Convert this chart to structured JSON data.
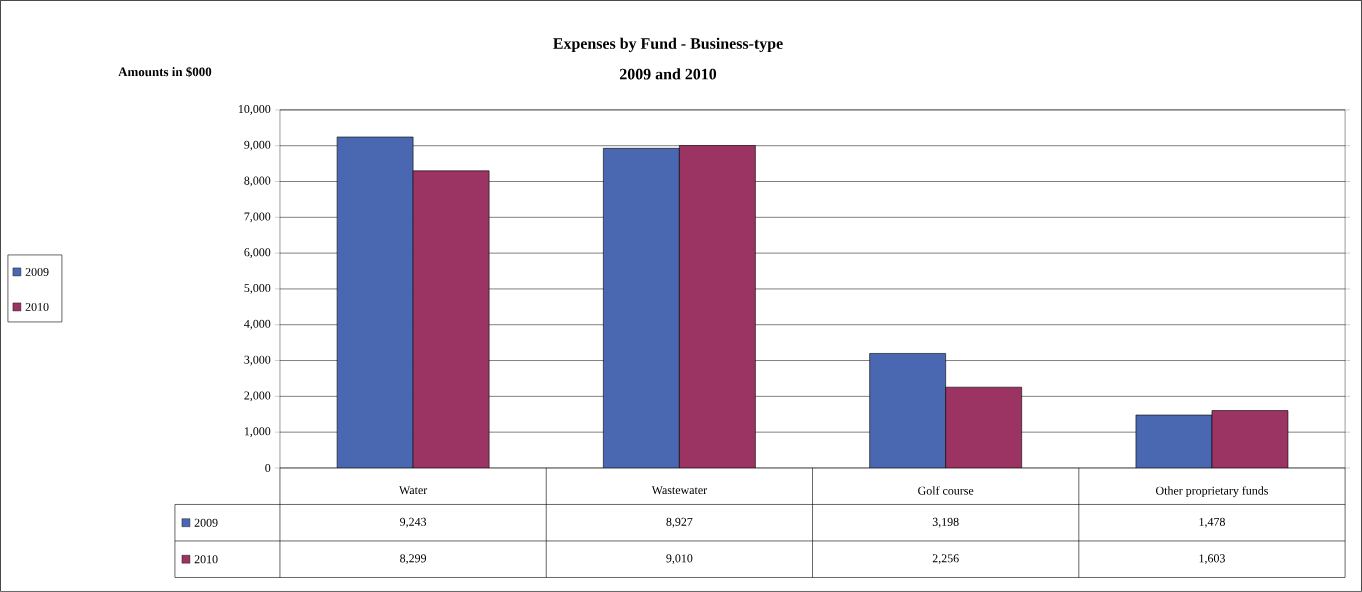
{
  "chart_data": {
    "type": "bar",
    "title": "Expenses by Fund - Business-type",
    "subtitle": "2009 and 2010",
    "ylabel": "Amounts in $000",
    "categories": [
      "Water",
      "Wastewater",
      "Golf course",
      "Other proprietary funds"
    ],
    "series": [
      {
        "name": "2009",
        "color": "#4a68b2",
        "values": [
          9243,
          8927,
          3198,
          1478
        ],
        "value_labels": [
          "9,243",
          "8,927",
          "3,198",
          "1,478"
        ]
      },
      {
        "name": "2010",
        "color": "#9b3462",
        "values": [
          8299,
          9010,
          2256,
          1603
        ],
        "value_labels": [
          "8,299",
          "9,010",
          "2,256",
          "1,603"
        ]
      }
    ],
    "ylim": [
      0,
      10000
    ],
    "yticks": [
      {
        "value": 0,
        "label": "0"
      },
      {
        "value": 1000,
        "label": "1,000"
      },
      {
        "value": 2000,
        "label": "2,000"
      },
      {
        "value": 3000,
        "label": "3,000"
      },
      {
        "value": 4000,
        "label": "4,000"
      },
      {
        "value": 5000,
        "label": "5,000"
      },
      {
        "value": 6000,
        "label": "6,000"
      },
      {
        "value": 7000,
        "label": "7,000"
      },
      {
        "value": 8000,
        "label": "8,000"
      },
      {
        "value": 9000,
        "label": "9,000"
      },
      {
        "value": 10000,
        "label": "10,000"
      }
    ],
    "grid": "y",
    "legend": "left"
  }
}
